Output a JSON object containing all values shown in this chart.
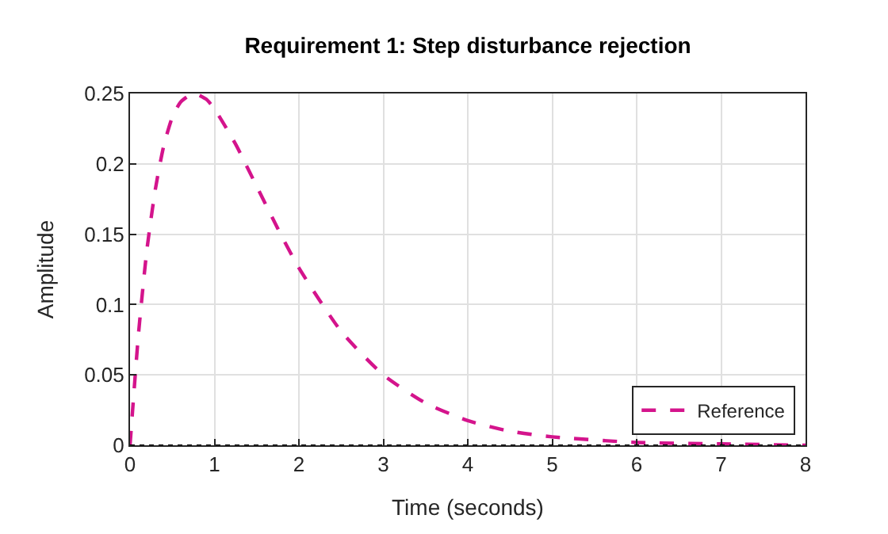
{
  "chart_data": {
    "type": "line",
    "title": "Requirement 1: Step disturbance rejection",
    "xlabel": "Time (seconds)",
    "ylabel": "Amplitude",
    "series": [
      {
        "name": "Reference",
        "color": "#d4148c",
        "x": [
          0,
          0.1,
          0.2,
          0.3,
          0.4,
          0.5,
          0.6,
          0.75,
          0.9,
          1.0,
          1.25,
          1.5,
          1.75,
          2,
          2.5,
          3,
          3.5,
          4,
          4.5,
          5,
          6,
          7,
          8
        ],
        "values": [
          0,
          0.079,
          0.139,
          0.182,
          0.213,
          0.233,
          0.244,
          0.25,
          0.246,
          0.239,
          0.214,
          0.184,
          0.154,
          0.126,
          0.081,
          0.05,
          0.03,
          0.0175,
          0.01,
          0.006,
          0.002,
          0.001,
          0
        ]
      }
    ],
    "xlim": [
      0,
      8
    ],
    "xticks": [
      0,
      1,
      2,
      3,
      4,
      5,
      6,
      7,
      8
    ],
    "ylim": [
      0,
      0.25
    ],
    "yticks": [
      0,
      0.05,
      0.1,
      0.15,
      0.2,
      0.25
    ],
    "ref_lines": [
      {
        "axis": "y",
        "value": 0,
        "color": "#000000",
        "line_style": "dotted"
      }
    ],
    "grid": true,
    "legend": "bottom right",
    "line_style": "dashed",
    "marker": "none"
  }
}
